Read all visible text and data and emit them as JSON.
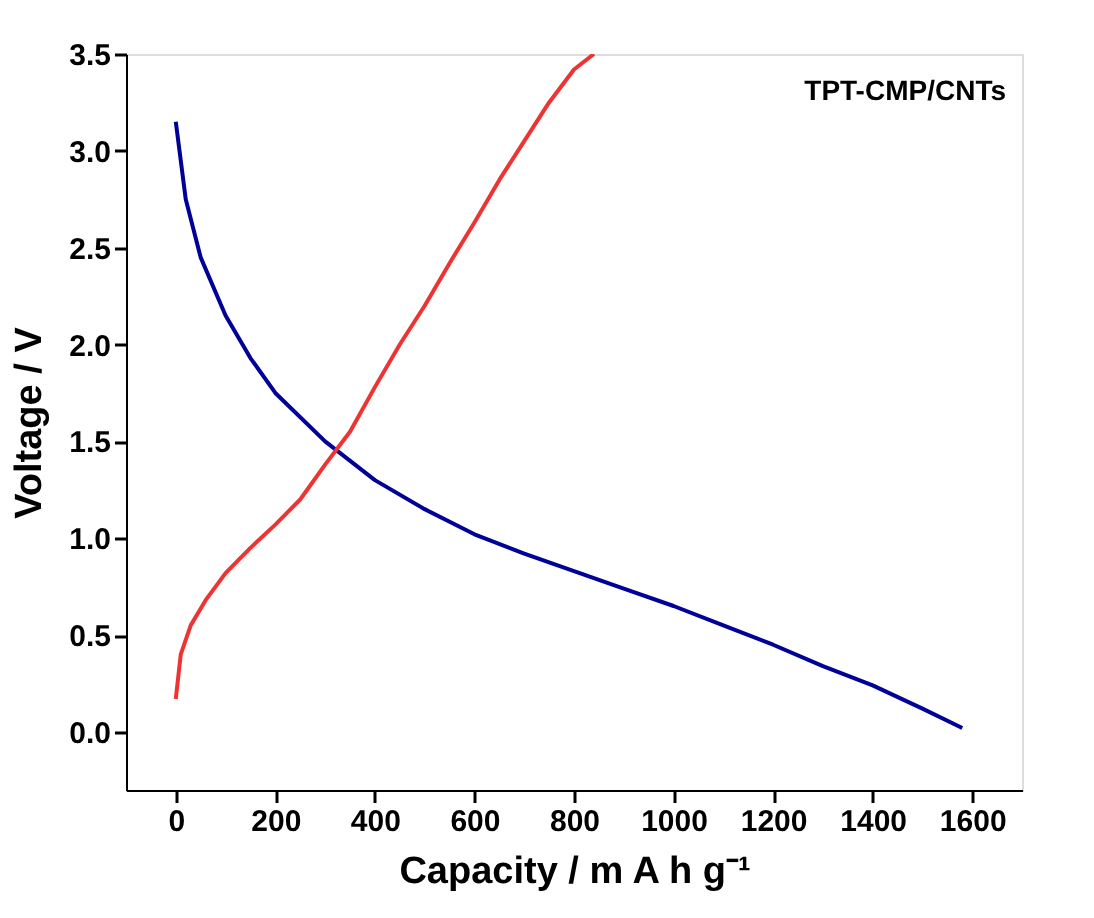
{
  "chart_data": {
    "type": "line",
    "xlabel": "Capacity / m A h g⁻¹",
    "ylabel": "Voltage / V",
    "annotations": [
      "TPT-CMP/CNTs"
    ],
    "xlim": [
      -100,
      1700
    ],
    "xticks": [
      0,
      200,
      400,
      600,
      800,
      1000,
      1200,
      1400,
      1600
    ],
    "ylim": [
      -0.3,
      3.5
    ],
    "yticks": [
      {
        "value": 0,
        "label": "0.0"
      },
      0.5,
      {
        "value": 1,
        "label": "1.0"
      },
      1.5,
      {
        "value": 2,
        "label": "2.0"
      },
      2.5,
      {
        "value": 3,
        "label": "3.0"
      },
      3.5
    ],
    "grid": false,
    "marker": "none",
    "line_style": "solid",
    "series": [
      {
        "color": "#000099",
        "x": [
          0,
          20,
          50,
          100,
          150,
          200,
          300,
          400,
          500,
          600,
          700,
          800,
          900,
          1000,
          1100,
          1200,
          1300,
          1400,
          1500,
          1580
        ],
        "values": [
          3.15,
          2.75,
          2.45,
          2.15,
          1.93,
          1.75,
          1.5,
          1.3,
          1.15,
          1.02,
          0.92,
          0.83,
          0.74,
          0.65,
          0.55,
          0.45,
          0.34,
          0.24,
          0.12,
          0.02
        ]
      },
      {
        "color": "#ee3333",
        "x": [
          0,
          10,
          30,
          60,
          100,
          150,
          200,
          250,
          300,
          350,
          400,
          450,
          500,
          550,
          600,
          650,
          700,
          750,
          800,
          840
        ],
        "values": [
          0.17,
          0.4,
          0.55,
          0.68,
          0.82,
          0.95,
          1.07,
          1.2,
          1.38,
          1.55,
          1.78,
          2.0,
          2.2,
          2.42,
          2.63,
          2.85,
          3.05,
          3.25,
          3.42,
          3.5
        ]
      }
    ]
  }
}
